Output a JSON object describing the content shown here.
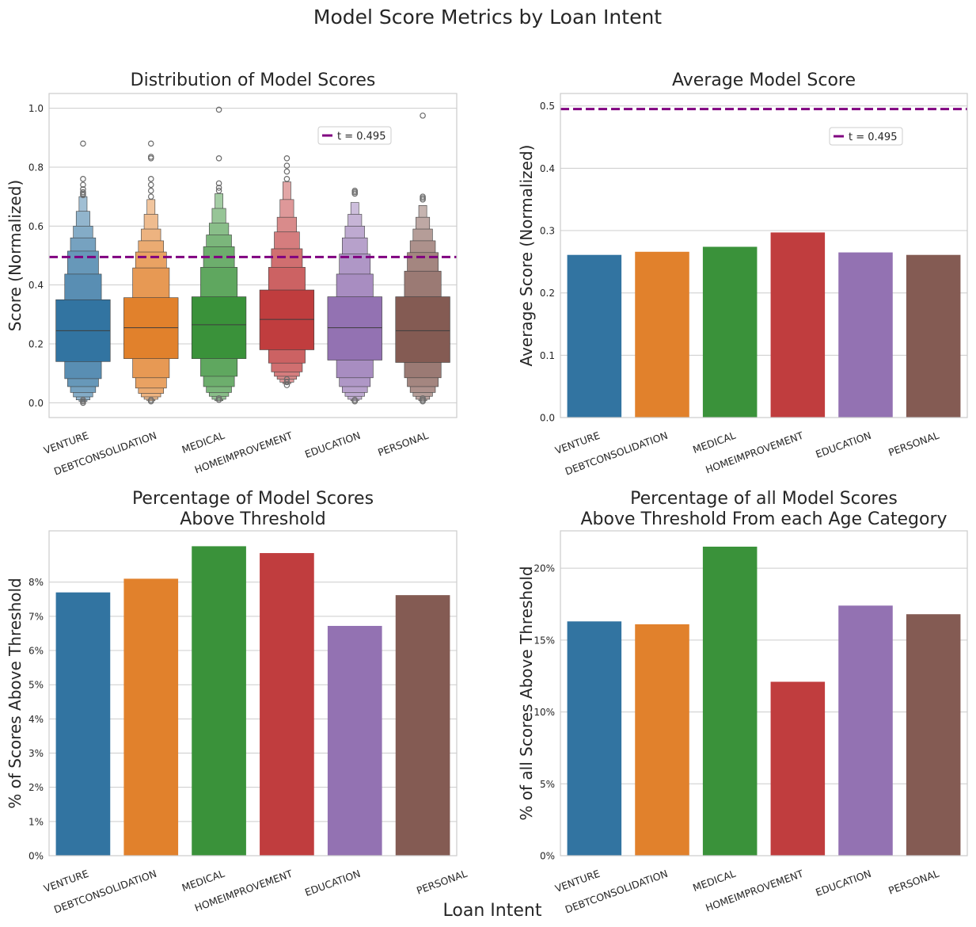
{
  "figure": {
    "title": "Model Score Metrics by Loan Intent",
    "xlabel": "Loan Intent"
  },
  "colors": {
    "series": [
      "#3274a1",
      "#e1812c",
      "#3a923a",
      "#c03d3e",
      "#9372b2",
      "#845b53"
    ],
    "threshold": "#800080",
    "grid": "#cccccc",
    "frame": "#cccccc"
  },
  "chart_data": [
    {
      "type": "boxen",
      "title": "Distribution of Model Scores",
      "ylabel": "Score (Normalized)",
      "ylim": [
        -0.05,
        1.05
      ],
      "yticks": [
        "0.0",
        "0.2",
        "0.4",
        "0.6",
        "0.8",
        "1.0"
      ],
      "grid": true,
      "categories": [
        "VENTURE",
        "DEBTCONSOLIDATION",
        "MEDICAL",
        "HOMEIMPROVEMENT",
        "EDUCATION",
        "PERSONAL"
      ],
      "threshold": {
        "value": 0.495,
        "label": "t = 0.495"
      },
      "legend": "upper right",
      "boxes": [
        {
          "median": 0.245,
          "levels": [
            [
              0.14,
              0.35
            ],
            [
              0.082,
              0.437
            ],
            [
              0.055,
              0.515
            ],
            [
              0.035,
              0.56
            ],
            [
              0.02,
              0.6
            ],
            [
              0.01,
              0.65
            ],
            [
              0.005,
              0.7
            ]
          ],
          "outliers": [
            0.0,
            0.005,
            0.01,
            0.88,
            0.76,
            0.74,
            0.725,
            0.715,
            0.71,
            0.705
          ]
        },
        {
          "median": 0.255,
          "levels": [
            [
              0.15,
              0.357
            ],
            [
              0.085,
              0.458
            ],
            [
              0.05,
              0.512
            ],
            [
              0.032,
              0.55
            ],
            [
              0.02,
              0.59
            ],
            [
              0.012,
              0.64
            ],
            [
              0.007,
              0.69
            ]
          ],
          "outliers": [
            0.005,
            0.01,
            0.88,
            0.835,
            0.83,
            0.76,
            0.74,
            0.72,
            0.7
          ]
        },
        {
          "median": 0.265,
          "levels": [
            [
              0.15,
              0.36
            ],
            [
              0.09,
              0.46
            ],
            [
              0.055,
              0.53
            ],
            [
              0.035,
              0.57
            ],
            [
              0.022,
              0.61
            ],
            [
              0.012,
              0.66
            ],
            [
              0.007,
              0.71
            ]
          ],
          "outliers": [
            0.01,
            0.015,
            0.995,
            0.83,
            0.745,
            0.73,
            0.72
          ]
        },
        {
          "median": 0.283,
          "levels": [
            [
              0.18,
              0.383
            ],
            [
              0.135,
              0.46
            ],
            [
              0.105,
              0.523
            ],
            [
              0.09,
              0.58
            ],
            [
              0.08,
              0.63
            ],
            [
              0.07,
              0.69
            ],
            [
              0.065,
              0.75
            ]
          ],
          "outliers": [
            0.06,
            0.07,
            0.08,
            0.83,
            0.805,
            0.785,
            0.76
          ]
        },
        {
          "median": 0.255,
          "levels": [
            [
              0.145,
              0.36
            ],
            [
              0.085,
              0.437
            ],
            [
              0.055,
              0.505
            ],
            [
              0.035,
              0.56
            ],
            [
              0.022,
              0.6
            ],
            [
              0.012,
              0.64
            ],
            [
              0.007,
              0.68
            ]
          ],
          "outliers": [
            0.005,
            0.01,
            0.72,
            0.715,
            0.71
          ]
        },
        {
          "median": 0.245,
          "levels": [
            [
              0.137,
              0.36
            ],
            [
              0.085,
              0.447
            ],
            [
              0.055,
              0.51
            ],
            [
              0.035,
              0.55
            ],
            [
              0.022,
              0.59
            ],
            [
              0.012,
              0.63
            ],
            [
              0.007,
              0.67
            ]
          ],
          "outliers": [
            0.005,
            0.01,
            0.015,
            0.975,
            0.7,
            0.695,
            0.69
          ]
        }
      ]
    },
    {
      "type": "bar",
      "title": "Average Model Score",
      "ylabel": "Average Score (Normalized)",
      "ylim": [
        0,
        0.52
      ],
      "yticks": [
        "0.0",
        "0.1",
        "0.2",
        "0.3",
        "0.4",
        "0.5"
      ],
      "grid": true,
      "categories": [
        "VENTURE",
        "DEBTCONSOLIDATION",
        "MEDICAL",
        "HOMEIMPROVEMENT",
        "EDUCATION",
        "PERSONAL"
      ],
      "values": [
        0.261,
        0.266,
        0.274,
        0.297,
        0.265,
        0.261
      ],
      "threshold": {
        "value": 0.495,
        "label": "t = 0.495"
      },
      "legend": "upper right"
    },
    {
      "type": "bar",
      "title_lines": [
        "Percentage of Model Scores",
        "Above Threshold"
      ],
      "ylabel": "% of Scores Above Threshold",
      "ylim": [
        0,
        9.5
      ],
      "yticks": [
        "0%",
        "1%",
        "2%",
        "3%",
        "4%",
        "5%",
        "6%",
        "7%",
        "8%"
      ],
      "grid": true,
      "categories": [
        "VENTURE",
        "DEBTCONSOLIDATION",
        "MEDICAL",
        "HOMEIMPROVEMENT",
        "EDUCATION",
        "PERSONAL"
      ],
      "values": [
        7.7,
        8.1,
        9.05,
        8.85,
        6.72,
        7.62
      ]
    },
    {
      "type": "bar",
      "title_lines": [
        "Percentage of all Model Scores",
        "Above Threshold From each Age Category"
      ],
      "ylabel": "% of all Scores Above Threshold",
      "ylim": [
        0,
        22.6
      ],
      "yticks": [
        "0%",
        "5%",
        "10%",
        "15%",
        "20%"
      ],
      "grid": true,
      "categories": [
        "VENTURE",
        "DEBTCONSOLIDATION",
        "MEDICAL",
        "HOMEIMPROVEMENT",
        "EDUCATION",
        "PERSONAL"
      ],
      "values": [
        16.3,
        16.1,
        21.5,
        12.1,
        17.4,
        16.8
      ]
    }
  ]
}
